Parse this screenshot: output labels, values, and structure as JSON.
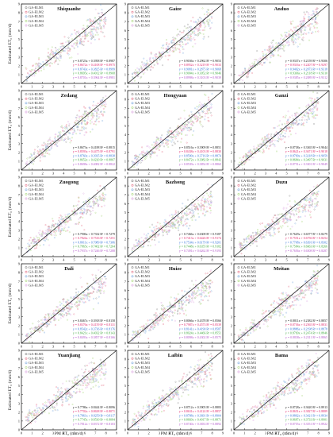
{
  "figure": {
    "x_axis_label": "PM ET₀ (mm/d)",
    "y_axis_label": "Estimated ET₀ (mm/d)"
  },
  "chart_data": [
    {
      "type": "scatter",
      "title": "Shiquanhe",
      "legend": [
        "GA-ELM1",
        "GA-ELM2",
        "GA-ELM3",
        "GA-ELM4",
        "GA-ELM5"
      ],
      "legend_placement": "top-left",
      "xlim": [
        0,
        9
      ],
      "ylim": [
        0,
        9
      ],
      "x_ticks": [
        0,
        1,
        2,
        3,
        4,
        5,
        6,
        7,
        8,
        9
      ],
      "y_ticks": [
        0,
        1,
        2,
        3,
        4,
        5,
        6,
        7,
        8,
        9
      ],
      "fit_equations": [
        "y = 0.8723x + 0.3958  R² = 0.8987",
        "y = 0.8672x + 0.4108  R² = 0.8975",
        "y = 0.8743x + 0.3825  R² = 0.8999",
        "y = 0.8695x + 0.4012  R² = 0.8968",
        "y = 0.8701x + 0.3964  R² = 0.8981"
      ],
      "eq_placement": "bottom-right"
    },
    {
      "type": "scatter",
      "title": "Gaize",
      "legend": [
        "GA-ELM1",
        "GA-ELM2",
        "GA-ELM3",
        "GA-ELM4",
        "GA-ELM5"
      ],
      "legend_placement": "top-left",
      "xlim": [
        0,
        9
      ],
      "ylim": [
        0,
        9
      ],
      "x_ticks": [
        0,
        1,
        2,
        3,
        4,
        5,
        6,
        7,
        8,
        9
      ],
      "y_ticks": [
        0,
        1,
        2,
        3,
        4,
        5,
        6,
        7,
        8,
        9
      ],
      "fit_equations": [
        "y = 0.9036x + 0.2962  R² = 0.9053",
        "y = 0.8952x + 0.3219  R² = 0.9033",
        "y = 0.9081x + 0.2875  R² = 0.9068",
        "y = 0.9004x + 0.3052  R² = 0.9046",
        "y = 0.8998x + 0.3103  R² = 0.9039"
      ],
      "eq_placement": "bottom-right"
    },
    {
      "type": "scatter",
      "title": "Anduo",
      "legend": [
        "GA-ELM1",
        "GA-ELM2",
        "GA-ELM3",
        "GA-ELM4",
        "GA-ELM5"
      ],
      "legend_placement": "top-left",
      "xlim": [
        0,
        9
      ],
      "ylim": [
        0,
        9
      ],
      "x_ticks": [
        0,
        1,
        2,
        3,
        4,
        5,
        6,
        7,
        8,
        9
      ],
      "y_ticks": [
        0,
        1,
        2,
        3,
        4,
        5,
        6,
        7,
        8,
        9
      ],
      "fit_equations": [
        "y = 0.9337x + 0.2159  R² = 0.9306",
        "y = 0.9316x + 0.2207  R² = 0.9297",
        "y = 0.9402x + 0.2073  R² = 0.9318",
        "y = 0.9366x + 0.2118  R² = 0.9310",
        "y = 0.9385x + 0.2089  R² = 0.9312"
      ],
      "eq_placement": "bottom-right"
    },
    {
      "type": "scatter",
      "title": "Zedang",
      "legend": [
        "GA-ELM1",
        "GA-ELM2",
        "GA-ELM3",
        "GA-ELM4",
        "GA-ELM5"
      ],
      "legend_placement": "top-left",
      "xlim": [
        0,
        9
      ],
      "ylim": [
        0,
        9
      ],
      "x_ticks": [
        0,
        1,
        2,
        3,
        4,
        5,
        6,
        7,
        8,
        9
      ],
      "y_ticks": [
        0,
        1,
        2,
        3,
        4,
        5,
        6,
        7,
        8,
        9
      ],
      "fit_equations": [
        "y = 0.8673x + 0.4188  R² = 0.8815",
        "y = 0.8593x + 0.4475  R² = 0.8791",
        "y = 0.8760x + 0.3935  R² = 0.8838",
        "y = 0.8652x + 0.4220  R² = 0.8807",
        "y = 0.8698x + 0.4082  R² = 0.8822"
      ],
      "eq_placement": "bottom-right"
    },
    {
      "type": "scatter",
      "title": "Hongyuan",
      "legend": [
        "GA-ELM1",
        "GA-ELM2",
        "GA-ELM3",
        "GA-ELM4",
        "GA-ELM5"
      ],
      "legend_placement": "top-left",
      "xlim": [
        0,
        9
      ],
      "ylim": [
        0,
        9
      ],
      "x_ticks": [
        0,
        1,
        2,
        3,
        4,
        5,
        6,
        7,
        8,
        9
      ],
      "y_ticks": [
        0,
        1,
        2,
        3,
        4,
        5,
        6,
        7,
        8,
        9
      ],
      "fit_equations": [
        "y = 0.8516x + 0.3909  R² = 0.8851",
        "y = 0.8438x + 0.4103  R² = 0.8830",
        "y = 0.8590x + 0.3716  R² = 0.8874",
        "y = 0.8472x + 0.3982  R² = 0.8842",
        "y = 0.8539x + 0.3854  R² = 0.8860"
      ],
      "eq_placement": "bottom-right"
    },
    {
      "type": "scatter",
      "title": "Ganzi",
      "legend": [
        "GA-ELM1",
        "GA-ELM2",
        "GA-ELM3",
        "GA-ELM4",
        "GA-ELM5"
      ],
      "legend_placement": "top-left",
      "xlim": [
        0,
        9
      ],
      "ylim": [
        0,
        9
      ],
      "x_ticks": [
        0,
        1,
        2,
        3,
        4,
        5,
        6,
        7,
        8,
        9
      ],
      "y_ticks": [
        0,
        1,
        2,
        3,
        4,
        5,
        6,
        7,
        8,
        9
      ],
      "fit_equations": [
        "y = 0.8738x + 0.3365  R² = 0.9044",
        "y = 0.8621x + 0.3671  R² = 0.9018",
        "y = 0.8790x + 0.3218  R² = 0.9059",
        "y = 0.8684x + 0.3497  R² = 0.9031",
        "y = 0.8751x + 0.3301  R² = 0.9049"
      ],
      "eq_placement": "bottom-right"
    },
    {
      "type": "scatter",
      "title": "Zuogong",
      "legend": [
        "GA-ELM1",
        "GA-ELM2",
        "GA-ELM3",
        "GA-ELM4",
        "GA-ELM5"
      ],
      "legend_placement": "top-left",
      "xlim": [
        0,
        9
      ],
      "ylim": [
        0,
        9
      ],
      "x_ticks": [
        0,
        1,
        2,
        3,
        4,
        5,
        6,
        7,
        8,
        9
      ],
      "y_ticks": [
        0,
        1,
        2,
        3,
        4,
        5,
        6,
        7,
        8,
        9
      ],
      "fit_equations": [
        "y = 0.7906x + 0.7332  R² = 0.7279",
        "y = 0.7824x + 0.7516  R² = 0.7251",
        "y = 0.8011x + 0.7089  R² = 0.7306",
        "y = 0.7865x + 0.7402  R² = 0.7264",
        "y = 0.7937x + 0.7246  R² = 0.7288"
      ],
      "eq_placement": "bottom-right"
    },
    {
      "type": "scatter",
      "title": "Bazhong",
      "legend": [
        "GA-ELM1",
        "GA-ELM2",
        "GA-ELM3",
        "GA-ELM4",
        "GA-ELM5"
      ],
      "legend_placement": "top-left",
      "xlim": [
        0,
        9
      ],
      "ylim": [
        0,
        9
      ],
      "x_ticks": [
        0,
        1,
        2,
        3,
        4,
        5,
        6,
        7,
        8,
        9
      ],
      "y_ticks": [
        0,
        1,
        2,
        3,
        4,
        5,
        6,
        7,
        8,
        9
      ],
      "fit_equations": [
        "y = 0.7466x + 0.6308  R² = 0.9187",
        "y = 0.7413x + 0.6426  R² = 0.9174",
        "y = 0.7534x + 0.6179  R² = 0.9201",
        "y = 0.7448x + 0.6355  R² = 0.9182",
        "y = 0.7491x + 0.6262  R² = 0.9193"
      ],
      "eq_placement": "bottom-right"
    },
    {
      "type": "scatter",
      "title": "Duzu",
      "legend": [
        "GA-ELM1",
        "GA-ELM2",
        "GA-ELM3",
        "GA-ELM4",
        "GA-ELM5"
      ],
      "legend_placement": "top-left",
      "xlim": [
        0,
        9
      ],
      "ylim": [
        0,
        9
      ],
      "x_ticks": [
        0,
        1,
        2,
        3,
        4,
        5,
        6,
        7,
        8,
        9
      ],
      "y_ticks": [
        0,
        1,
        2,
        3,
        4,
        5,
        6,
        7,
        8,
        9
      ],
      "fit_equations": [
        "y = 0.7629x + 0.6577  R² = 0.8279",
        "y = 0.7551x + 0.6756  R² = 0.8254",
        "y = 0.7708x + 0.6391  R² = 0.8302",
        "y = 0.7584x + 0.6663  R² = 0.8266",
        "y = 0.7656x + 0.6508  R² = 0.8287"
      ],
      "eq_placement": "bottom-right"
    },
    {
      "type": "scatter",
      "title": "Dali",
      "legend": [
        "GA-ELM1",
        "GA-ELM2",
        "GA-ELM3",
        "GA-ELM4",
        "GA-ELM5"
      ],
      "legend_placement": "top-left",
      "xlim": [
        0,
        9
      ],
      "ylim": [
        0,
        9
      ],
      "x_ticks": [
        0,
        1,
        2,
        3,
        4,
        5,
        6,
        7,
        8,
        9
      ],
      "y_ticks": [
        0,
        1,
        2,
        3,
        4,
        5,
        6,
        7,
        8,
        9
      ],
      "fit_equations": [
        "y = 0.8467x + 0.3918  R² = 0.8158",
        "y = 0.8376x + 0.4159  R² = 0.8131",
        "y = 0.8542x + 0.3736  R² = 0.8176",
        "y = 0.8421x + 0.4032  R² = 0.8143",
        "y = 0.8493x + 0.3857  R² = 0.8166"
      ],
      "eq_placement": "bottom-right"
    },
    {
      "type": "scatter",
      "title": "Huize",
      "legend": [
        "GA-ELM1",
        "GA-ELM2",
        "GA-ELM3",
        "GA-ELM4",
        "GA-ELM5"
      ],
      "legend_placement": "top-left",
      "xlim": [
        0,
        9
      ],
      "ylim": [
        0,
        9
      ],
      "x_ticks": [
        0,
        1,
        2,
        3,
        4,
        5,
        6,
        7,
        8,
        9
      ],
      "y_ticks": [
        0,
        1,
        2,
        3,
        4,
        5,
        6,
        7,
        8,
        9
      ],
      "fit_equations": [
        "y = 0.8066x + 0.4378  R² = 0.8566",
        "y = 0.7987x + 0.4573  R² = 0.8539",
        "y = 0.8141x + 0.4190  R² = 0.8587",
        "y = 0.8024x + 0.4466  R² = 0.8551",
        "y = 0.8098x + 0.4302  R² = 0.8575"
      ],
      "eq_placement": "bottom-right"
    },
    {
      "type": "scatter",
      "title": "Meitan",
      "legend": [
        "GA-ELM1",
        "GA-ELM2",
        "GA-ELM3",
        "GA-ELM4",
        "GA-ELM5"
      ],
      "legend_placement": "top-left",
      "xlim": [
        0,
        9
      ],
      "ylim": [
        0,
        9
      ],
      "x_ticks": [
        0,
        1,
        2,
        3,
        4,
        5,
        6,
        7,
        8,
        9
      ],
      "y_ticks": [
        0,
        1,
        2,
        3,
        4,
        5,
        6,
        7,
        8,
        9
      ],
      "fit_equations": [
        "y = 0.8811x + 0.2382  R² = 0.8857",
        "y = 0.8736x + 0.2565  R² = 0.8831",
        "y = 0.8886x + 0.2198  R² = 0.8878",
        "y = 0.8769x + 0.2474  R² = 0.8846",
        "y = 0.8838x + 0.2311  R² = 0.8865"
      ],
      "eq_placement": "bottom-right"
    },
    {
      "type": "scatter",
      "title": "Yuanjiang",
      "legend": [
        "GA-ELM1",
        "GA-ELM2",
        "GA-ELM3",
        "GA-ELM4",
        "GA-ELM5"
      ],
      "legend_placement": "top-left",
      "xlim": [
        0,
        9
      ],
      "ylim": [
        0,
        9
      ],
      "x_ticks": [
        0,
        1,
        2,
        3,
        4,
        5,
        6,
        7,
        8,
        9
      ],
      "y_ticks": [
        0,
        1,
        2,
        3,
        4,
        5,
        6,
        7,
        8,
        9
      ],
      "fit_equations": [
        "y = 0.7786x + 0.8444  R² = 0.8096",
        "y = 0.7702x + 0.8638  R² = 0.8071",
        "y = 0.7861x + 0.8259  R² = 0.8117",
        "y = 0.7745x + 0.8530  R² = 0.8084",
        "y = 0.7812x + 0.8372  R² = 0.8103"
      ],
      "eq_placement": "bottom-right"
    },
    {
      "type": "scatter",
      "title": "Laibin",
      "legend": [
        "GA-ELM1",
        "GA-ELM2",
        "GA-ELM3",
        "GA-ELM4",
        "GA-ELM5"
      ],
      "legend_placement": "top-left",
      "xlim": [
        0,
        9
      ],
      "ylim": [
        0,
        9
      ],
      "x_ticks": [
        0,
        1,
        2,
        3,
        4,
        5,
        6,
        7,
        8,
        9
      ],
      "y_ticks": [
        0,
        1,
        2,
        3,
        4,
        5,
        6,
        7,
        8,
        9
      ],
      "fit_equations": [
        "y = 0.8712x + 0.3905  R² = 0.8883",
        "y = 0.8631x + 0.4124  R² = 0.8857",
        "y = 0.8788x + 0.3691  R² = 0.8904",
        "y = 0.8669x + 0.4017  R² = 0.8871",
        "y = 0.8740x + 0.3833  R² = 0.8892"
      ],
      "eq_placement": "bottom-right"
    },
    {
      "type": "scatter",
      "title": "Bama",
      "legend": [
        "GA-ELM1",
        "GA-ELM2",
        "GA-ELM3",
        "GA-ELM4",
        "GA-ELM5"
      ],
      "legend_placement": "top-left",
      "xlim": [
        0,
        9
      ],
      "ylim": [
        0,
        9
      ],
      "x_ticks": [
        0,
        1,
        2,
        3,
        4,
        5,
        6,
        7,
        8,
        9
      ],
      "y_ticks": [
        0,
        1,
        2,
        3,
        4,
        5,
        6,
        7,
        8,
        9
      ],
      "fit_equations": [
        "y = 0.8728x + 0.3620  R² = 0.8913",
        "y = 0.8651x + 0.3827  R² = 0.8889",
        "y = 0.8802x + 0.3421  R² = 0.8934",
        "y = 0.8687x + 0.3733  R² = 0.8901",
        "y = 0.8755x + 0.3551  R² = 0.8922"
      ],
      "eq_placement": "bottom-right"
    }
  ],
  "colors": {
    "series": [
      "#9a9a9a",
      "#e8879a",
      "#8fb7e3",
      "#b5dc8e",
      "#e2b3e6"
    ],
    "equations": [
      "#111111",
      "#e0246a",
      "#2d6fd6",
      "#3aa53a",
      "#b055c8"
    ],
    "axes": "#222222"
  }
}
